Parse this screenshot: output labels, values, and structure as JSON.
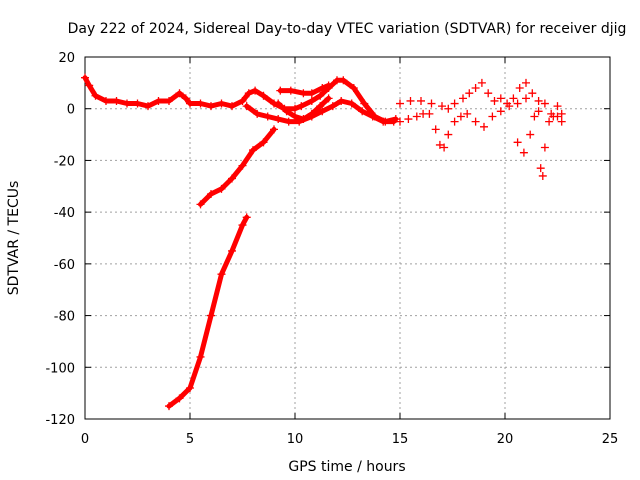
{
  "chart_data": {
    "type": "scatter",
    "title": "Day 222 of 2024, Sidereal Day-to-day VTEC variation (SDTVAR) for receiver djig",
    "xlabel": "GPS time / hours",
    "ylabel": "SDTVAR / TECUs",
    "xlim": [
      0,
      25
    ],
    "ylim": [
      -120,
      20
    ],
    "xticks": [
      "0",
      "5",
      "10",
      "15",
      "20",
      "25"
    ],
    "yticks": [
      "20",
      "0",
      "-20",
      "-40",
      "-60",
      "-80",
      "-100",
      "-120"
    ],
    "grid": true,
    "marker": "+",
    "series": [
      {
        "color": "#ff0000",
        "style": "line",
        "points": [
          [
            0,
            12
          ],
          [
            0.2,
            9
          ],
          [
            0.5,
            5
          ],
          [
            1,
            3
          ],
          [
            1.5,
            3
          ],
          [
            2,
            2
          ],
          [
            2.5,
            2
          ],
          [
            3,
            1
          ],
          [
            3.5,
            3
          ],
          [
            4,
            3
          ],
          [
            4.5,
            6
          ],
          [
            4.8,
            4
          ],
          [
            5,
            2
          ],
          [
            5.5,
            2
          ],
          [
            6,
            1
          ],
          [
            6.5,
            2
          ],
          [
            7,
            1
          ],
          [
            7.5,
            3
          ],
          [
            7.8,
            6
          ],
          [
            8.1,
            7
          ],
          [
            8.5,
            5
          ],
          [
            9,
            2
          ],
          [
            9.5,
            0
          ],
          [
            10,
            0
          ],
          [
            10.3,
            1
          ],
          [
            10.8,
            3
          ],
          [
            11.2,
            5
          ],
          [
            11.6,
            8
          ],
          [
            12,
            11
          ],
          [
            12.3,
            11
          ],
          [
            12.8,
            8
          ],
          [
            13.3,
            2
          ],
          [
            13.8,
            -3
          ],
          [
            14.3,
            -5
          ],
          [
            14.8,
            -4
          ]
        ]
      },
      {
        "color": "#ff0000",
        "style": "line",
        "points": [
          [
            7.7,
            1
          ],
          [
            8.2,
            -2
          ],
          [
            8.7,
            -3
          ],
          [
            9.2,
            -4
          ],
          [
            9.7,
            -5
          ],
          [
            10.2,
            -5
          ],
          [
            10.8,
            -3
          ],
          [
            11.3,
            -1
          ],
          [
            11.8,
            1
          ],
          [
            12.2,
            3
          ],
          [
            12.7,
            2
          ],
          [
            13.2,
            -1
          ],
          [
            13.7,
            -3
          ],
          [
            14.2,
            -5
          ],
          [
            14.7,
            -5
          ]
        ]
      },
      {
        "color": "#ff0000",
        "style": "line",
        "points": [
          [
            9.2,
            2
          ],
          [
            9.6,
            -1
          ],
          [
            10,
            -3
          ],
          [
            10.4,
            -4
          ],
          [
            10.8,
            -2
          ],
          [
            11.2,
            1
          ],
          [
            11.6,
            4
          ]
        ]
      },
      {
        "color": "#ff0000",
        "style": "line",
        "points": [
          [
            9.3,
            7
          ],
          [
            9.8,
            7
          ],
          [
            10.4,
            6
          ],
          [
            10.8,
            6
          ],
          [
            11.3,
            8
          ],
          [
            11.6,
            9
          ]
        ]
      },
      {
        "color": "#ff0000",
        "style": "line",
        "points": [
          [
            5.5,
            -37
          ],
          [
            6,
            -33
          ],
          [
            6.5,
            -31
          ],
          [
            7,
            -27
          ],
          [
            7.5,
            -22
          ],
          [
            8,
            -16
          ],
          [
            8.5,
            -13
          ],
          [
            9,
            -8
          ]
        ]
      },
      {
        "color": "#ff0000",
        "style": "line",
        "points": [
          [
            4,
            -115
          ],
          [
            4.5,
            -112
          ],
          [
            5,
            -108
          ],
          [
            5.5,
            -96
          ],
          [
            6,
            -80
          ],
          [
            6.5,
            -64
          ],
          [
            7,
            -55
          ],
          [
            7.5,
            -45
          ],
          [
            7.7,
            -42
          ]
        ]
      },
      {
        "color": "#ff0000",
        "style": "points",
        "points": [
          [
            15,
            2
          ],
          [
            15.5,
            3
          ],
          [
            16,
            3
          ],
          [
            16.5,
            2
          ],
          [
            17,
            1
          ],
          [
            17.3,
            0
          ],
          [
            17.6,
            2
          ],
          [
            18,
            4
          ],
          [
            18.3,
            6
          ],
          [
            18.6,
            8
          ],
          [
            18.9,
            10
          ],
          [
            19.2,
            6
          ],
          [
            19.5,
            3
          ],
          [
            19.8,
            4
          ],
          [
            20.1,
            2
          ],
          [
            20.4,
            4
          ],
          [
            20.7,
            8
          ],
          [
            21,
            10
          ],
          [
            21.3,
            6
          ],
          [
            21.6,
            3
          ],
          [
            21.9,
            2
          ],
          [
            22.2,
            -2
          ],
          [
            22.5,
            1
          ],
          [
            22.7,
            -2
          ]
        ]
      },
      {
        "color": "#ff0000",
        "style": "points",
        "points": [
          [
            15,
            -5
          ],
          [
            15.4,
            -4
          ],
          [
            15.8,
            -3
          ],
          [
            16.1,
            -2
          ],
          [
            16.4,
            -2
          ],
          [
            16.7,
            -8
          ],
          [
            16.9,
            -14
          ],
          [
            17.1,
            -15
          ],
          [
            17.3,
            -10
          ],
          [
            17.6,
            -5
          ],
          [
            17.9,
            -3
          ],
          [
            18.2,
            -2
          ],
          [
            18.6,
            -5
          ],
          [
            19,
            -7
          ],
          [
            19.4,
            -3
          ],
          [
            19.8,
            -1
          ],
          [
            20.2,
            1
          ],
          [
            20.6,
            2
          ],
          [
            21,
            4
          ]
        ]
      },
      {
        "color": "#ff0000",
        "style": "points",
        "points": [
          [
            20.6,
            -13
          ],
          [
            20.9,
            -17
          ],
          [
            21.2,
            -10
          ],
          [
            21.4,
            -3
          ],
          [
            21.6,
            -1
          ],
          [
            21.7,
            -23
          ],
          [
            21.8,
            -26
          ],
          [
            21.9,
            -15
          ],
          [
            22.1,
            -5
          ],
          [
            22.3,
            -3
          ],
          [
            22.5,
            -3
          ],
          [
            22.7,
            -5
          ]
        ]
      }
    ]
  }
}
